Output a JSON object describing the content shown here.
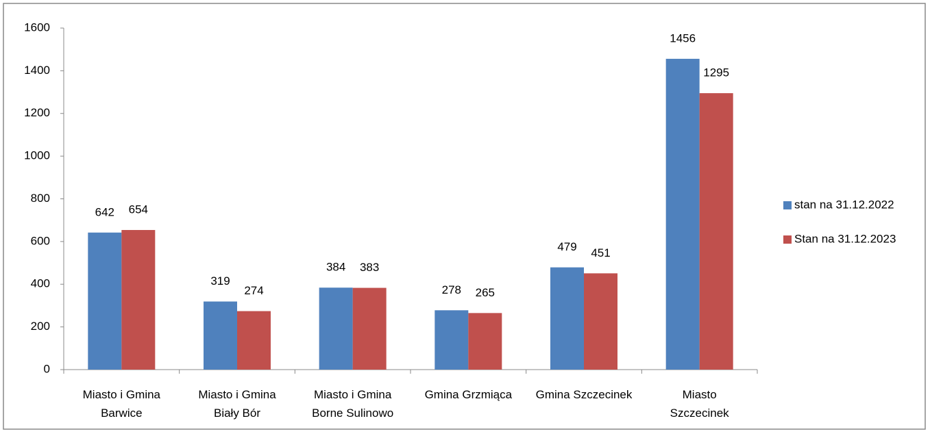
{
  "chart_data": {
    "type": "bar",
    "categories": [
      "Miasto i Gmina\nBarwice",
      "Miasto i Gmina\nBiały Bór",
      "Miasto i Gmina\nBorne Sulinowo",
      "Gmina Grzmiąca",
      "Gmina Szczecinek",
      "Miasto\nSzczecinek"
    ],
    "series": [
      {
        "name": "stan na 31.12.2022",
        "color": "#4f81bd",
        "values": [
          642,
          319,
          384,
          278,
          479,
          1456
        ]
      },
      {
        "name": "Stan na 31.12.2023",
        "color": "#c0504d",
        "values": [
          654,
          274,
          383,
          265,
          451,
          1295
        ]
      }
    ],
    "ylim": [
      0,
      1600
    ],
    "yticks": [
      0,
      200,
      400,
      600,
      800,
      1000,
      1200,
      1400,
      1600
    ],
    "legend": "right"
  }
}
